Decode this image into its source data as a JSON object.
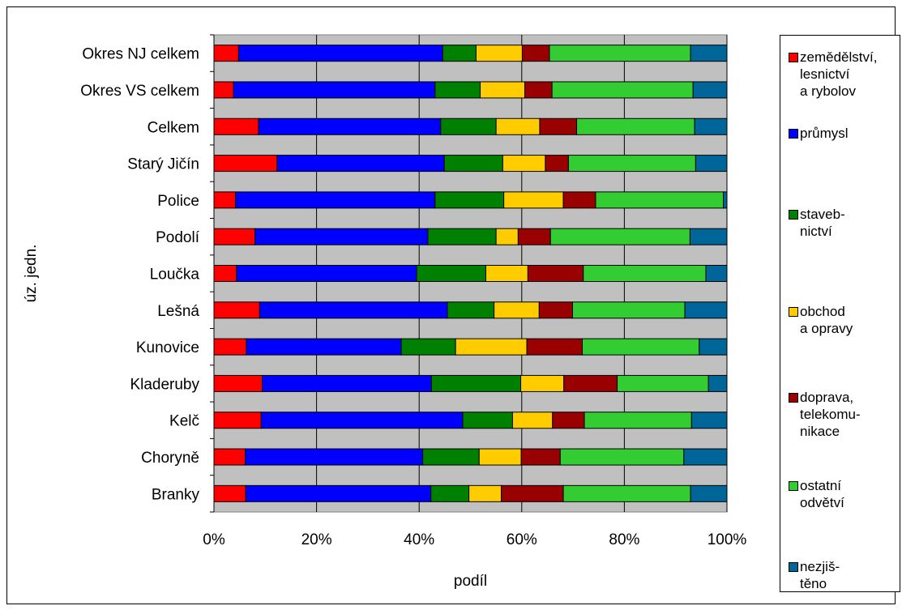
{
  "chart_data": {
    "type": "bar",
    "orientation": "horizontal",
    "stacked": "percent",
    "title": "",
    "xlabel": "podíl",
    "ylabel": "úz. jedn.",
    "xlim": [
      0,
      100
    ],
    "x_ticks": [
      "0%",
      "20%",
      "40%",
      "60%",
      "80%",
      "100%"
    ],
    "grid": "vertical",
    "legend_position": "right",
    "categories": [
      "Okres NJ celkem",
      "Okres VS celkem",
      "Celkem",
      "Starý Jičín",
      "Police",
      "Podolí",
      "Loučka",
      "Lešná",
      "Kunovice",
      "Kladeruby",
      "Kelč",
      "Choryně",
      "Branky"
    ],
    "series": [
      {
        "name": "zemědělství,\nlesnictví\n  a rybolov",
        "color": "#ff0000",
        "values": [
          4.8,
          3.8,
          8.7,
          12.3,
          4.2,
          8.0,
          4.4,
          8.9,
          6.3,
          9.4,
          9.2,
          6.1,
          6.2
        ]
      },
      {
        "name": "průmysl",
        "color": "#0000ff",
        "values": [
          39.8,
          39.3,
          35.5,
          32.6,
          38.9,
          33.7,
          35.1,
          36.6,
          30.2,
          33.0,
          39.3,
          34.6,
          36.1
        ]
      },
      {
        "name": "staveb-\n nictví",
        "color": "#008000",
        "values": [
          6.5,
          8.8,
          10.8,
          11.4,
          13.4,
          13.3,
          13.5,
          9.1,
          10.6,
          17.4,
          9.7,
          11.0,
          7.4
        ]
      },
      {
        "name": "obchod\n a opravy",
        "color": "#ffcc00",
        "values": [
          9.0,
          8.7,
          8.5,
          8.3,
          11.6,
          4.3,
          8.2,
          8.8,
          13.9,
          8.4,
          7.8,
          8.2,
          6.3
        ]
      },
      {
        "name": "doprava,\n telekomu-\n nikace",
        "color": "#990000",
        "values": [
          5.3,
          5.3,
          7.2,
          4.5,
          6.3,
          6.3,
          10.8,
          6.5,
          10.8,
          10.4,
          6.2,
          7.6,
          12.1
        ]
      },
      {
        "name": "ostatní\n odvětví",
        "color": "#33cc33",
        "values": [
          27.5,
          27.5,
          23.0,
          24.8,
          24.9,
          27.2,
          23.9,
          21.9,
          22.8,
          17.8,
          20.9,
          24.1,
          24.8
        ]
      },
      {
        "name": "nezjiš-\n těno",
        "color": "#006699",
        "values": [
          7.1,
          6.6,
          6.3,
          6.1,
          0.7,
          7.2,
          4.1,
          8.2,
          5.4,
          3.6,
          6.9,
          8.4,
          7.1
        ]
      }
    ]
  }
}
